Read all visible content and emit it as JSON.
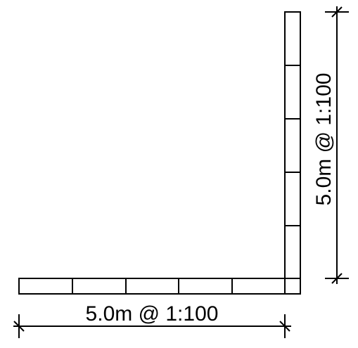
{
  "diagram": {
    "horizontal_dimension_label": "5.0m @ 1:100",
    "vertical_dimension_label": "5.0m @ 1:100",
    "horizontal_segments": 5,
    "vertical_segments": 5,
    "line_color": "#000000",
    "background_color": "#ffffff"
  }
}
